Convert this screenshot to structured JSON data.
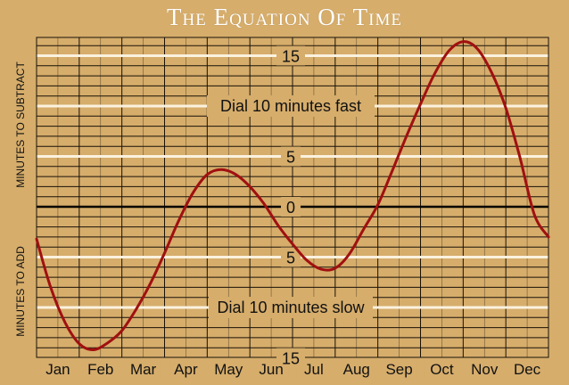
{
  "chart_data": {
    "type": "line",
    "title": "The Equation Of Time",
    "ylabel_top": "MINUTES TO SUBTRACT",
    "ylabel_bottom": "MINUTES TO ADD",
    "y_tick_labels": [
      "15",
      "5",
      "0",
      "5",
      "15"
    ],
    "y_tick_values": [
      15,
      5,
      0,
      -5,
      -15
    ],
    "ylim": [
      -15,
      15
    ],
    "months": [
      "Jan",
      "Feb",
      "Mar",
      "Apr",
      "May",
      "Jun",
      "Jul",
      "Aug",
      "Sep",
      "Oct",
      "Nov",
      "Dec"
    ],
    "annotations": [
      "Dial 10 minutes fast",
      "Dial 10 minutes slow"
    ],
    "annotation_values": [
      10,
      -10
    ],
    "grid": true,
    "series": [
      {
        "color": "#a01010",
        "x": [
          0,
          0.33,
          0.67,
          1.0,
          1.33,
          1.67,
          2.0,
          2.33,
          2.67,
          3.0,
          3.33,
          3.67,
          4.0,
          4.33,
          4.67,
          5.0,
          5.33,
          5.67,
          6.0,
          6.33,
          6.67,
          7.0,
          7.33,
          7.67,
          8.0,
          8.33,
          8.67,
          9.0,
          9.33,
          9.67,
          10.0,
          10.33,
          10.67,
          11.0,
          11.33,
          11.67,
          12.0
        ],
        "values": [
          -3.2,
          -8.0,
          -11.5,
          -13.6,
          -14.2,
          -13.5,
          -12.3,
          -10.2,
          -7.6,
          -4.6,
          -1.4,
          1.4,
          3.2,
          3.7,
          3.2,
          2.0,
          0.3,
          -1.9,
          -3.7,
          -5.3,
          -6.2,
          -6.1,
          -4.7,
          -2.2,
          0.2,
          3.5,
          7.0,
          10.2,
          13.2,
          15.5,
          16.4,
          15.7,
          13.3,
          9.8,
          4.9,
          -0.8,
          -3.0
        ]
      }
    ]
  }
}
